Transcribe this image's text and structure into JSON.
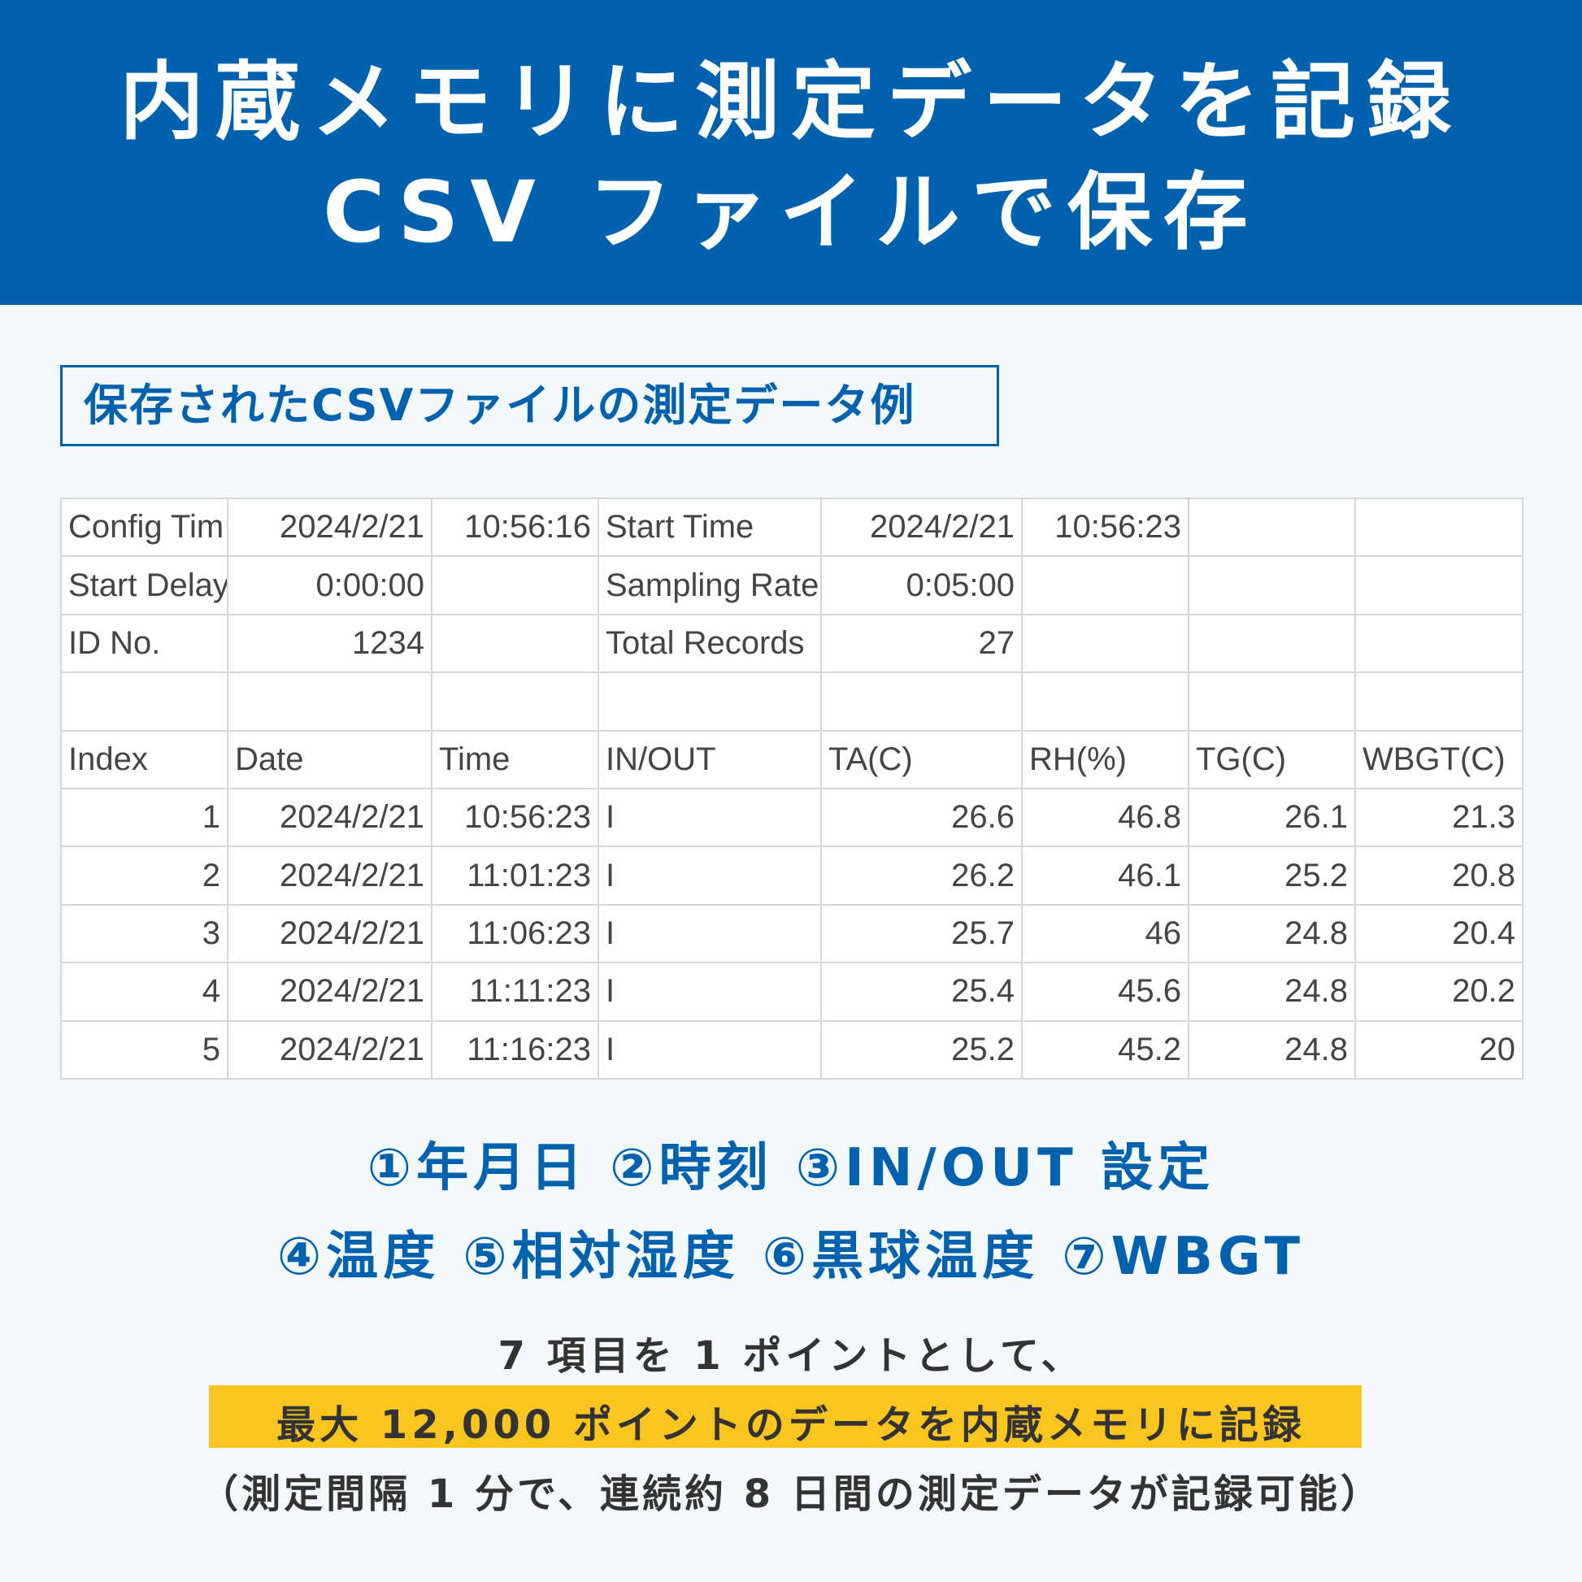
{
  "header": {
    "line1": "内蔵メモリに測定データを記録",
    "line2": "CSV ファイルで保存"
  },
  "subtitle": "保存されたCSVファイルの測定データ例",
  "table": {
    "rows": [
      [
        "Config Tim",
        "2024/2/21",
        "10:56:16",
        "Start Time",
        "2024/2/21",
        "10:56:23",
        "",
        ""
      ],
      [
        "Start Delay",
        "0:00:00",
        "",
        "Sampling Rate",
        "0:05:00",
        "",
        "",
        ""
      ],
      [
        "ID No.",
        "1234",
        "",
        "Total Records",
        "27",
        "",
        "",
        ""
      ],
      [
        "",
        "",
        "",
        "",
        "",
        "",
        "",
        ""
      ],
      [
        "Index",
        "Date",
        "Time",
        "IN/OUT",
        "TA(C)",
        "RH(%)",
        "TG(C)",
        "WBGT(C)"
      ],
      [
        "1",
        "2024/2/21",
        "10:56:23",
        "I",
        "26.6",
        "46.8",
        "26.1",
        "21.3"
      ],
      [
        "2",
        "2024/2/21",
        "11:01:23",
        "I",
        "26.2",
        "46.1",
        "25.2",
        "20.8"
      ],
      [
        "3",
        "2024/2/21",
        "11:06:23",
        "I",
        "25.7",
        "46",
        "24.8",
        "20.4"
      ],
      [
        "4",
        "2024/2/21",
        "11:11:23",
        "I",
        "25.4",
        "45.6",
        "24.8",
        "20.2"
      ],
      [
        "5",
        "2024/2/21",
        "11:16:23",
        "I",
        "25.2",
        "45.2",
        "24.8",
        "20"
      ]
    ]
  },
  "legend": {
    "line1": "①年月日 ②時刻 ③IN/OUT 設定",
    "line2": "④温度 ⑤相対湿度 ⑥黒球温度 ⑦WBGT"
  },
  "notes": {
    "line1": "7 項目を 1 ポイントとして、",
    "highlight": "最大 12,000 ポイントのデータを内蔵メモリに記録",
    "line3": "（測定間隔 1 分で、連続約 8 日間の測定データが記録可能）"
  },
  "colors": {
    "brand": "#0062ae",
    "highlight": "#fbc51f",
    "background": "#f3f9fa"
  }
}
